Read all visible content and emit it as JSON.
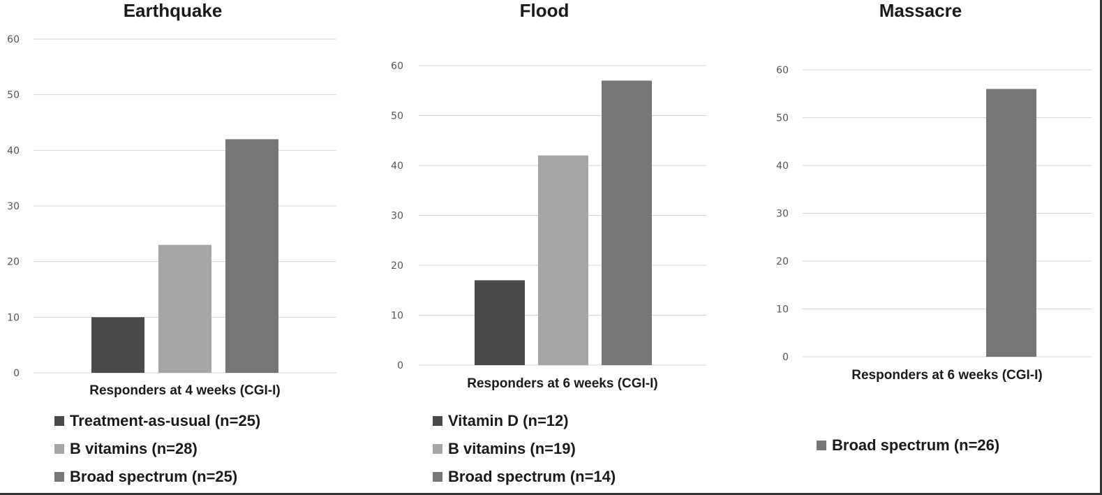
{
  "colors": {
    "dark": "#4a4a4a",
    "light": "#a6a6a6",
    "medium": "#767676"
  },
  "chart_data": [
    {
      "type": "bar",
      "title": "Earthquake",
      "xlabel": "Responders at 4 weeks (CGI-I)",
      "ylabel": "",
      "ylim": [
        0,
        60
      ],
      "yticks": [
        0,
        10,
        20,
        30,
        40,
        50,
        60
      ],
      "grid": true,
      "legend": "bottom",
      "categories": [
        "Responders at 4 weeks (CGI-I)"
      ],
      "series": [
        {
          "name": "Treatment-as-usual (n=25)",
          "values": [
            10
          ],
          "color": "#4a4a4a"
        },
        {
          "name": "B vitamins (n=28)",
          "values": [
            23
          ],
          "color": "#a6a6a6"
        },
        {
          "name": "Broad spectrum (n=25)",
          "values": [
            42
          ],
          "color": "#767676"
        }
      ]
    },
    {
      "type": "bar",
      "title": "Flood",
      "xlabel": "Responders at 6 weeks (CGI-I)",
      "ylabel": "",
      "ylim": [
        0,
        60
      ],
      "yticks": [
        0,
        10,
        20,
        30,
        40,
        50,
        60
      ],
      "grid": true,
      "legend": "bottom",
      "categories": [
        "Responders at 6 weeks (CGI-I)"
      ],
      "series": [
        {
          "name": "Vitamin D (n=12)",
          "values": [
            17
          ],
          "color": "#4a4a4a"
        },
        {
          "name": "B vitamins (n=19)",
          "values": [
            42
          ],
          "color": "#a6a6a6"
        },
        {
          "name": "Broad spectrum (n=14)",
          "values": [
            57
          ],
          "color": "#767676"
        }
      ]
    },
    {
      "type": "bar",
      "title": "Massacre",
      "xlabel": "Responders at 6 weeks (CGI-I)",
      "ylabel": "",
      "ylim": [
        0,
        60
      ],
      "yticks": [
        0,
        10,
        20,
        30,
        40,
        50,
        60
      ],
      "grid": true,
      "legend": "bottom",
      "categories": [
        "Responders at 6 weeks (CGI-I)"
      ],
      "series": [
        {
          "name": "Broad spectrum (n=26)",
          "values": [
            56
          ],
          "color": "#767676"
        }
      ]
    }
  ]
}
